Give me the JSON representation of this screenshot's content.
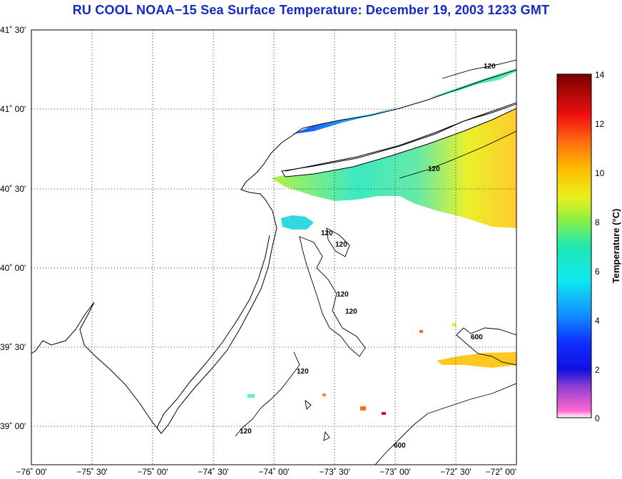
{
  "title": "RU COOL  NOAA−15  Sea Surface Temperature:  December 19, 2003 1233 GMT",
  "lat_labels": [
    "41˚ 30'",
    "41˚ 00'",
    "40˚ 30'",
    "40˚ 00'",
    "39˚ 30'",
    "39˚ 00'"
  ],
  "lon_labels": [
    "−76˚ 00'",
    "−75˚ 30'",
    "−75˚ 00'",
    "−74˚ 30'",
    "−74˚ 00'",
    "−73˚ 30'",
    "−73˚ 00'",
    "−72˚ 30'",
    "−72˚ 00'"
  ],
  "contour_labels": [
    "120",
    "120",
    "120",
    "120",
    "120",
    "120",
    "120",
    "120",
    "600",
    "600"
  ],
  "colorbar": {
    "title": "Temperature (°C)",
    "ticks": [
      "14",
      "12",
      "10",
      "8",
      "6",
      "4",
      "2",
      "0"
    ],
    "min": 0,
    "max": 14
  },
  "colors": {
    "title": "#1428c8",
    "grid": "#000000"
  }
}
